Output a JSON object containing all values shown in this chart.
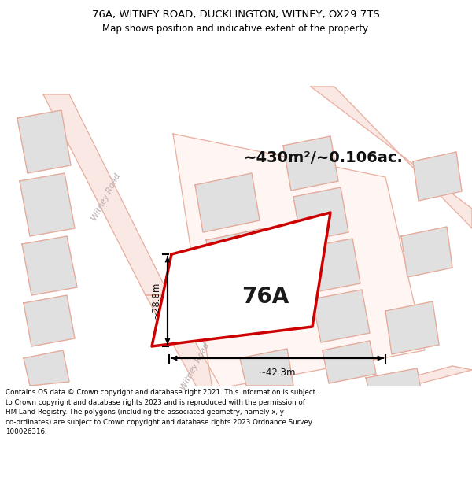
{
  "title_line1": "76A, WITNEY ROAD, DUCKLINGTON, WITNEY, OX29 7TS",
  "title_line2": "Map shows position and indicative extent of the property.",
  "area_text": "~430m²/~0.106ac.",
  "label_76A": "76A",
  "dim_width": "~42.3m",
  "dim_height": "~28.8m",
  "road_label": "Witney Road",
  "footer_text": "Contains OS data © Crown copyright and database right 2021. This information is subject to Crown copyright and database rights 2023 and is reproduced with the permission of HM Land Registry. The polygons (including the associated geometry, namely x, y co-ordinates) are subject to Crown copyright and database rights 2023 Ordnance Survey 100026316.",
  "bg_color": "#ffffff",
  "map_bg": "#ffffff",
  "road_fill": "#fae8e4",
  "road_edge": "#e8b0a0",
  "building_fill": "#e0e0e0",
  "building_edge": "#e8a898",
  "highlight_edge": "#cc0000",
  "highlight_fill": "#ffffff",
  "dim_color": "#111111",
  "road_text_color": "#b8a8a8",
  "title_color": "#000000",
  "footer_color": "#000000",
  "title_fontsize": 9.5,
  "subtitle_fontsize": 8.5,
  "area_fontsize": 14,
  "label_fontsize": 20,
  "footer_fontsize": 6.3
}
